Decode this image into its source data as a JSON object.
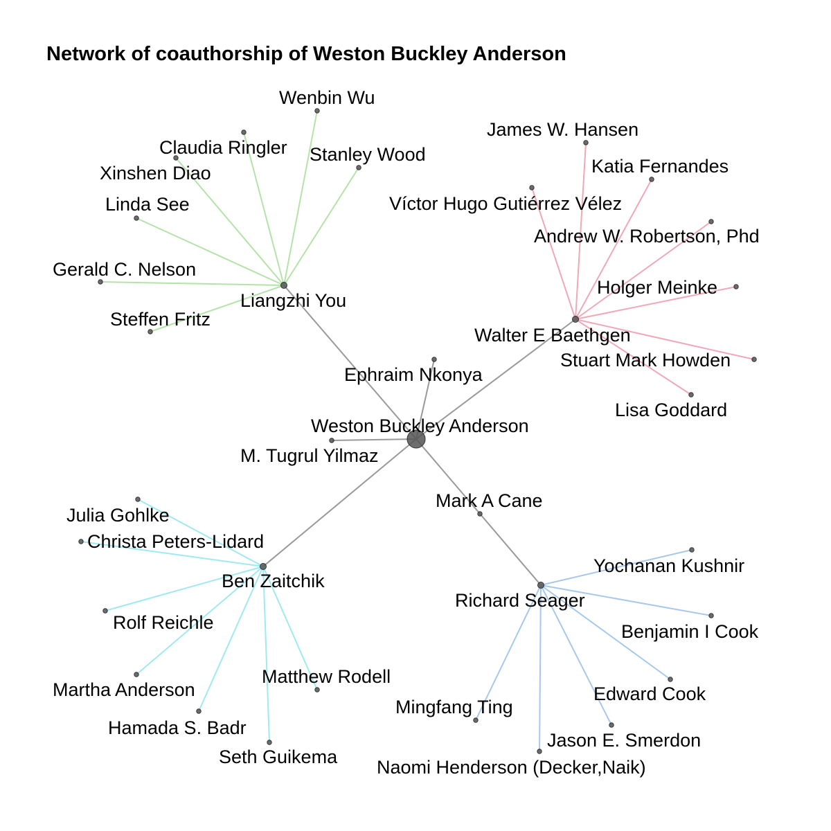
{
  "title": "Network of coauthorship of Weston Buckley Anderson",
  "colors": {
    "trunk": "#999999",
    "you": "#b4e3a8",
    "baethgen": "#f0a8b8",
    "zaitchik": "#9eeaf0",
    "seager": "#a6c8ec",
    "node": "#555555"
  },
  "nodes": [
    {
      "id": "anderson",
      "label": "Weston Buckley Anderson",
      "center": true
    },
    {
      "id": "you",
      "label": "Liangzhi You"
    },
    {
      "id": "baethgen",
      "label": "Walter E Baethgen"
    },
    {
      "id": "zaitchik",
      "label": "Ben Zaitchik"
    },
    {
      "id": "seager",
      "label": "Richard Seager"
    },
    {
      "id": "nkonya",
      "label": "Ephraim Nkonya"
    },
    {
      "id": "yilmaz",
      "label": "M. Tugrul Yilmaz"
    },
    {
      "id": "cane",
      "label": "Mark A Cane"
    },
    {
      "id": "wu",
      "label": "Wenbin Wu"
    },
    {
      "id": "ringler",
      "label": "Claudia Ringler"
    },
    {
      "id": "wood",
      "label": "Stanley Wood"
    },
    {
      "id": "diao",
      "label": "Xinshen Diao"
    },
    {
      "id": "see",
      "label": "Linda See"
    },
    {
      "id": "nelson",
      "label": "Gerald C. Nelson"
    },
    {
      "id": "fritz",
      "label": "Steffen Fritz"
    },
    {
      "id": "hansen",
      "label": "James W. Hansen"
    },
    {
      "id": "fernandes",
      "label": "Katia Fernandes"
    },
    {
      "id": "velez",
      "label": "Víctor Hugo Gutiérrez Vélez"
    },
    {
      "id": "robertson",
      "label": "Andrew W. Robertson, Phd"
    },
    {
      "id": "meinke",
      "label": "Holger Meinke"
    },
    {
      "id": "howden",
      "label": "Stuart Mark Howden"
    },
    {
      "id": "goddard",
      "label": "Lisa Goddard"
    },
    {
      "id": "gohlke",
      "label": "Julia Gohlke"
    },
    {
      "id": "lidard",
      "label": "Christa Peters-Lidard"
    },
    {
      "id": "reichle",
      "label": "Rolf Reichle"
    },
    {
      "id": "manderson",
      "label": "Martha Anderson"
    },
    {
      "id": "badr",
      "label": "Hamada S. Badr"
    },
    {
      "id": "guikema",
      "label": "Seth Guikema"
    },
    {
      "id": "rodell",
      "label": "Matthew Rodell"
    },
    {
      "id": "kushnir",
      "label": "Yochanan Kushnir"
    },
    {
      "id": "bcook",
      "label": "Benjamin I Cook"
    },
    {
      "id": "ecook",
      "label": "Edward Cook"
    },
    {
      "id": "smerdon",
      "label": "Jason E. Smerdon"
    },
    {
      "id": "henderson",
      "label": "Naomi Henderson (Decker,Naik)"
    },
    {
      "id": "ting",
      "label": "Mingfang Ting"
    }
  ],
  "edges": [
    {
      "source": "anderson",
      "target": "you",
      "group": "trunk"
    },
    {
      "source": "anderson",
      "target": "baethgen",
      "group": "trunk"
    },
    {
      "source": "anderson",
      "target": "zaitchik",
      "group": "trunk"
    },
    {
      "source": "anderson",
      "target": "seager",
      "group": "trunk"
    },
    {
      "source": "anderson",
      "target": "nkonya",
      "group": "trunk"
    },
    {
      "source": "anderson",
      "target": "yilmaz",
      "group": "trunk"
    },
    {
      "source": "you",
      "target": "wu",
      "group": "you"
    },
    {
      "source": "you",
      "target": "ringler",
      "group": "you"
    },
    {
      "source": "you",
      "target": "wood",
      "group": "you"
    },
    {
      "source": "you",
      "target": "diao",
      "group": "you"
    },
    {
      "source": "you",
      "target": "see",
      "group": "you"
    },
    {
      "source": "you",
      "target": "nelson",
      "group": "you"
    },
    {
      "source": "you",
      "target": "fritz",
      "group": "you"
    },
    {
      "source": "baethgen",
      "target": "hansen",
      "group": "baethgen"
    },
    {
      "source": "baethgen",
      "target": "fernandes",
      "group": "baethgen"
    },
    {
      "source": "baethgen",
      "target": "velez",
      "group": "baethgen"
    },
    {
      "source": "baethgen",
      "target": "robertson",
      "group": "baethgen"
    },
    {
      "source": "baethgen",
      "target": "meinke",
      "group": "baethgen"
    },
    {
      "source": "baethgen",
      "target": "howden",
      "group": "baethgen"
    },
    {
      "source": "baethgen",
      "target": "goddard",
      "group": "baethgen"
    },
    {
      "source": "zaitchik",
      "target": "gohlke",
      "group": "zaitchik"
    },
    {
      "source": "zaitchik",
      "target": "lidard",
      "group": "zaitchik"
    },
    {
      "source": "zaitchik",
      "target": "reichle",
      "group": "zaitchik"
    },
    {
      "source": "zaitchik",
      "target": "manderson",
      "group": "zaitchik"
    },
    {
      "source": "zaitchik",
      "target": "badr",
      "group": "zaitchik"
    },
    {
      "source": "zaitchik",
      "target": "guikema",
      "group": "zaitchik"
    },
    {
      "source": "zaitchik",
      "target": "rodell",
      "group": "zaitchik"
    },
    {
      "source": "seager",
      "target": "kushnir",
      "group": "seager"
    },
    {
      "source": "seager",
      "target": "bcook",
      "group": "seager"
    },
    {
      "source": "seager",
      "target": "ecook",
      "group": "seager"
    },
    {
      "source": "seager",
      "target": "smerdon",
      "group": "seager"
    },
    {
      "source": "seager",
      "target": "henderson",
      "group": "seager"
    },
    {
      "source": "seager",
      "target": "ting",
      "group": "seager"
    }
  ]
}
